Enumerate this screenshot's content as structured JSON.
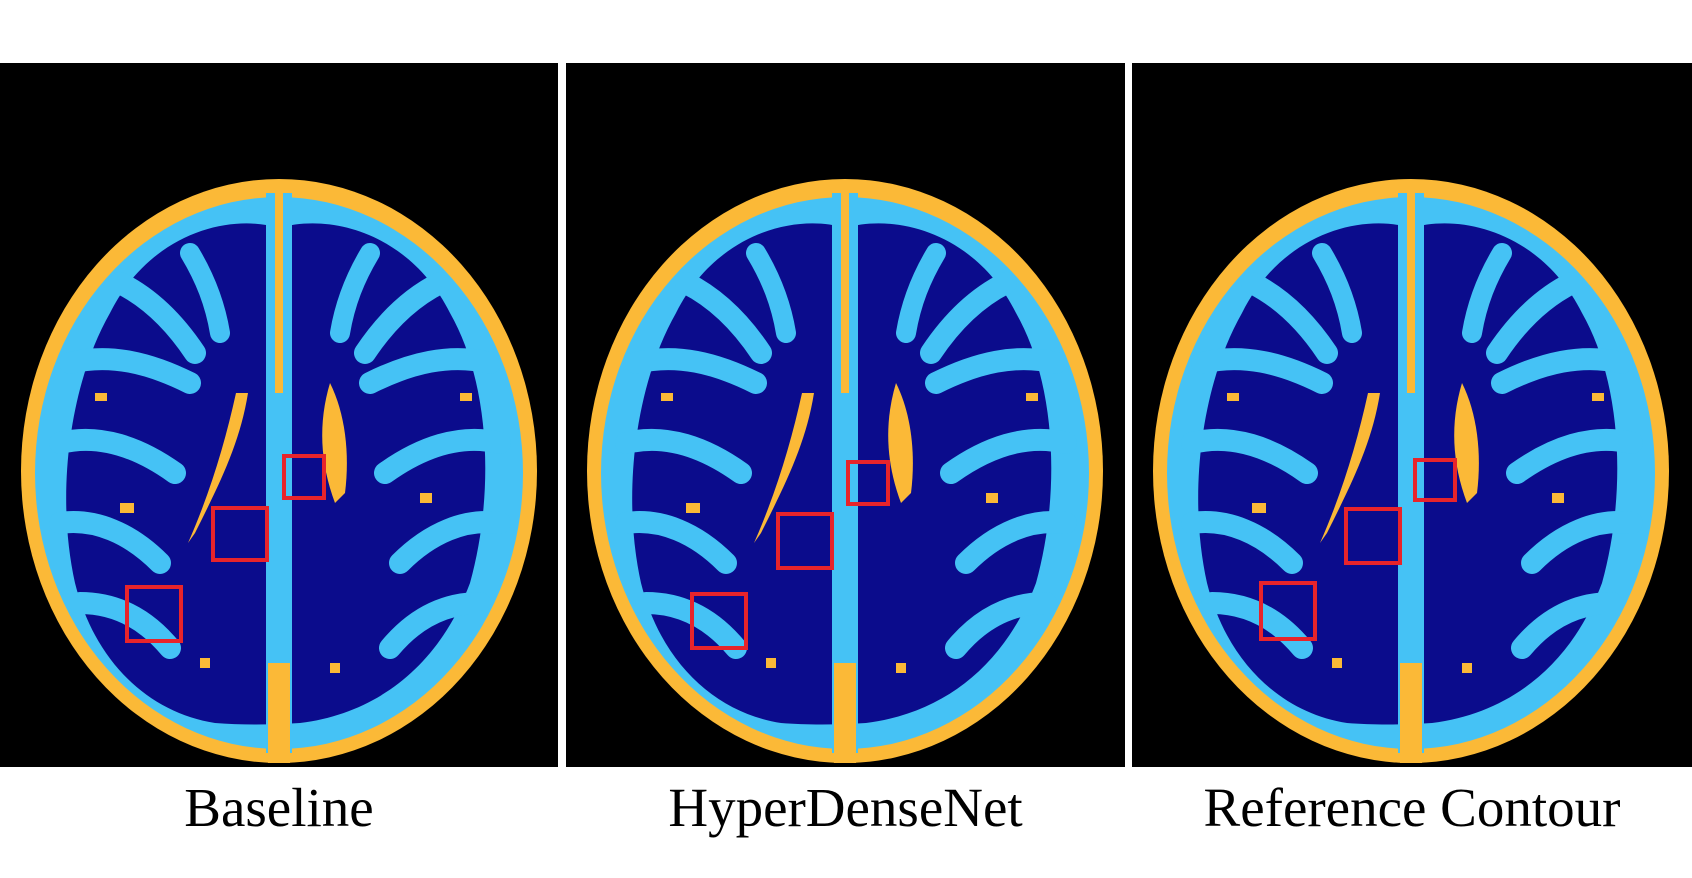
{
  "colors": {
    "background": "#000000",
    "skull_csf": "#fbb937",
    "gray_matter": "#45c2f5",
    "white_matter": "#0b0c8c",
    "highlight_box": "#e8242b"
  },
  "panels": [
    {
      "caption": "Baseline"
    },
    {
      "caption": "HyperDenseNet"
    },
    {
      "caption": "Reference Contour"
    }
  ]
}
